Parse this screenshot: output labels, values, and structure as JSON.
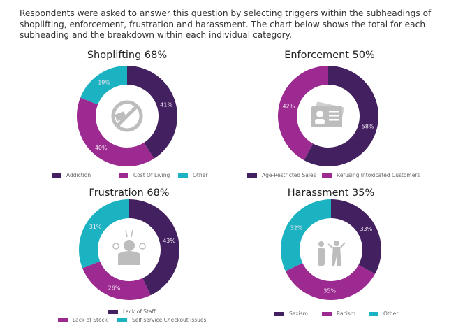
{
  "intro": "Respondents were asked to answer this question by selecting triggers within the subheadings of shoplifting, enforcement, frustration and harassment. The chart below shows the total for each subheading and the breakdown within each individual category.",
  "colors": {
    "dark_purple": "#43205f",
    "magenta": "#9d2a91",
    "teal": "#1bb3c1"
  },
  "chart_data": [
    {
      "type": "pie",
      "donut": true,
      "title": "Shoplifting 68%",
      "center_icon": "no-shoplifting-hand-icon",
      "categories": [
        "Addiction",
        "Cost Of Living",
        "Other"
      ],
      "values": [
        41,
        40,
        19
      ],
      "labels": [
        "41%",
        "40%",
        "19%"
      ],
      "colors": [
        "#43205f",
        "#9d2a91",
        "#1bb3c1"
      ],
      "legend": "bottom"
    },
    {
      "type": "pie",
      "donut": true,
      "title": "Enforcement 50%",
      "center_icon": "id-card-icon",
      "categories": [
        "Age-Restricted Sales",
        "Refusing Intoxicated Customers"
      ],
      "values": [
        58,
        42
      ],
      "labels": [
        "58%",
        "42%"
      ],
      "colors": [
        "#43205f",
        "#9d2a91"
      ],
      "legend": "bottom"
    },
    {
      "type": "pie",
      "donut": true,
      "title": "Frustration 68%",
      "center_icon": "frustrated-person-icon",
      "categories": [
        "Lack of Staff",
        "Lack of Stock",
        "Self-service Checkout Issues"
      ],
      "values": [
        43,
        26,
        31
      ],
      "labels": [
        "43%",
        "26%",
        "31%"
      ],
      "colors": [
        "#43205f",
        "#9d2a91",
        "#1bb3c1"
      ],
      "legend": "bottom"
    },
    {
      "type": "pie",
      "donut": true,
      "title": "Harassment 35%",
      "center_icon": "harassment-people-icon",
      "categories": [
        "Sexism",
        "Racism",
        "Other"
      ],
      "values": [
        33,
        35,
        32
      ],
      "labels": [
        "33%",
        "35%",
        "32%"
      ],
      "colors": [
        "#43205f",
        "#9d2a91",
        "#1bb3c1"
      ],
      "legend": "bottom"
    }
  ]
}
